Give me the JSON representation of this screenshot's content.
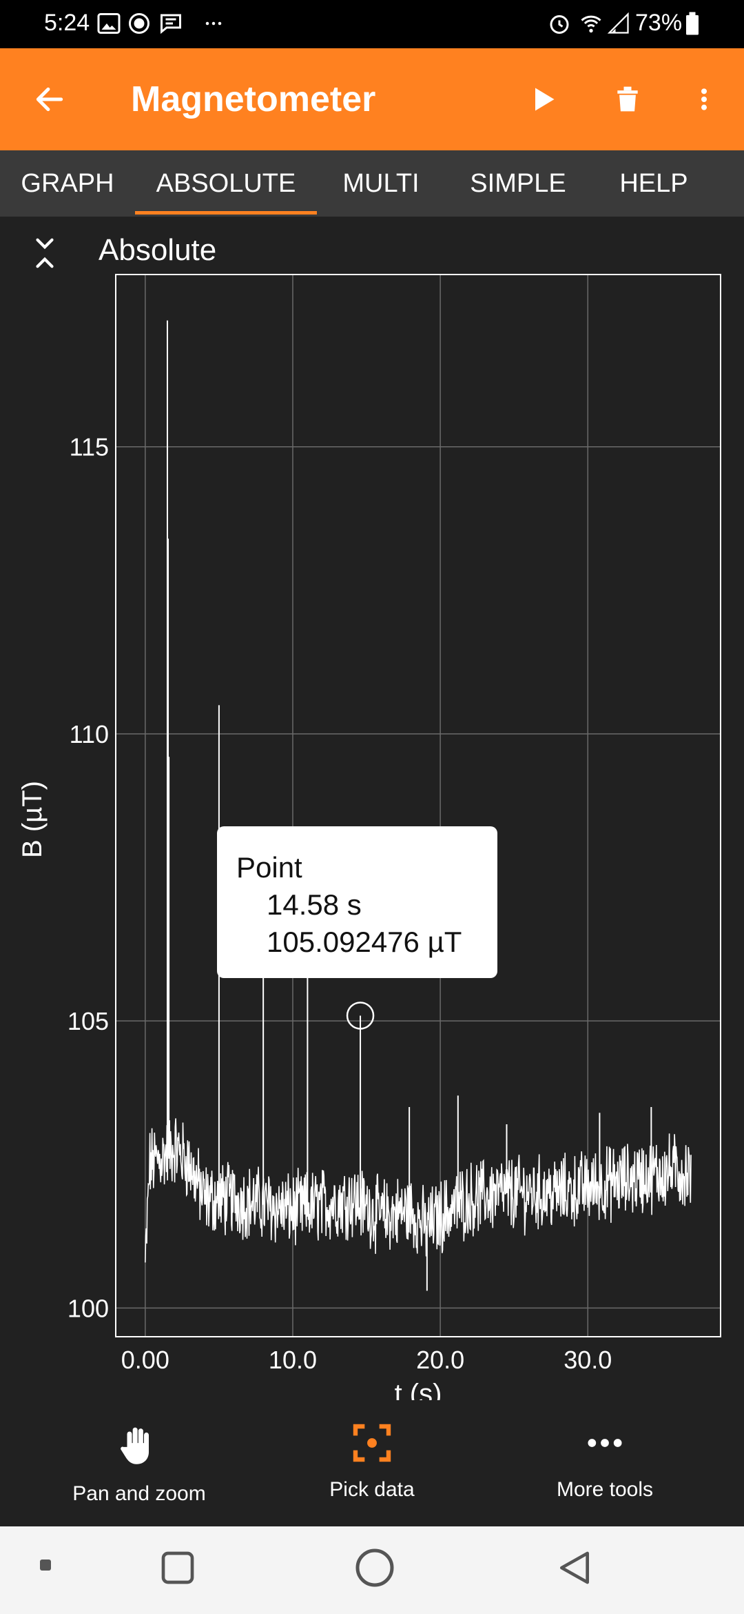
{
  "status_bar": {
    "time": "5:24",
    "battery_percent": "73%"
  },
  "app_bar": {
    "title": "Magnetometer",
    "colors": {
      "accent": "#FF8120"
    }
  },
  "tabs": [
    {
      "label": "GRAPH",
      "active": false
    },
    {
      "label": "ABSOLUTE",
      "active": true
    },
    {
      "label": "MULTI",
      "active": false
    },
    {
      "label": "SIMPLE",
      "active": false
    },
    {
      "label": "HELP",
      "active": false
    }
  ],
  "section": {
    "title": "Absolute"
  },
  "tooltip": {
    "title": "Point",
    "x_value": "14.58 s",
    "y_value": "105.092476 µT"
  },
  "chart_data": {
    "type": "line",
    "xlabel": "t (s)",
    "ylabel": "B (µT)",
    "xlim": [
      -2,
      39
    ],
    "ylim": [
      99.5,
      118
    ],
    "x_ticks": [
      0,
      10,
      20,
      30
    ],
    "x_tick_labels": [
      "0.00",
      "10.0",
      "20.0",
      "30.0"
    ],
    "y_ticks": [
      100,
      105,
      110,
      115
    ],
    "y_tick_labels": [
      "100",
      "105",
      "110",
      "115"
    ],
    "grid": true,
    "baseline_series": [
      {
        "t": 0.0,
        "B": 100.7
      },
      {
        "t": 0.3,
        "B": 102.5
      },
      {
        "t": 1.0,
        "B": 102.6
      },
      {
        "t": 2.0,
        "B": 102.8
      },
      {
        "t": 3.0,
        "B": 102.5
      },
      {
        "t": 4.0,
        "B": 101.9
      },
      {
        "t": 6.0,
        "B": 101.9
      },
      {
        "t": 8.0,
        "B": 101.8
      },
      {
        "t": 10.0,
        "B": 101.7
      },
      {
        "t": 12.0,
        "B": 101.8
      },
      {
        "t": 14.0,
        "B": 101.9
      },
      {
        "t": 16.0,
        "B": 101.6
      },
      {
        "t": 18.0,
        "B": 101.7
      },
      {
        "t": 19.0,
        "B": 101.4
      },
      {
        "t": 20.0,
        "B": 101.6
      },
      {
        "t": 22.0,
        "B": 101.9
      },
      {
        "t": 24.0,
        "B": 102.0
      },
      {
        "t": 26.0,
        "B": 102.0
      },
      {
        "t": 28.0,
        "B": 102.0
      },
      {
        "t": 30.0,
        "B": 102.1
      },
      {
        "t": 32.0,
        "B": 102.2
      },
      {
        "t": 34.0,
        "B": 102.3
      },
      {
        "t": 36.0,
        "B": 102.4
      },
      {
        "t": 37.0,
        "B": 102.3
      }
    ],
    "spikes": [
      {
        "t": 1.5,
        "B": 117.2
      },
      {
        "t": 1.55,
        "B": 113.4
      },
      {
        "t": 1.6,
        "B": 109.6
      },
      {
        "t": 5.0,
        "B": 110.5
      },
      {
        "t": 8.0,
        "B": 106.0
      },
      {
        "t": 11.0,
        "B": 107.0
      },
      {
        "t": 14.58,
        "B": 105.092476
      },
      {
        "t": 17.9,
        "B": 103.5
      },
      {
        "t": 19.1,
        "B": 100.3
      },
      {
        "t": 21.2,
        "B": 103.7
      },
      {
        "t": 24.5,
        "B": 103.2
      },
      {
        "t": 30.8,
        "B": 103.4
      },
      {
        "t": 34.3,
        "B": 103.5
      }
    ],
    "selected_point": {
      "t": 14.58,
      "B": 105.092476
    }
  },
  "bottom_toolbar": [
    {
      "label": "Pan and zoom",
      "icon": "hand-icon"
    },
    {
      "label": "Pick data",
      "icon": "pick-data-icon"
    },
    {
      "label": "More tools",
      "icon": "more-horiz-icon"
    }
  ]
}
